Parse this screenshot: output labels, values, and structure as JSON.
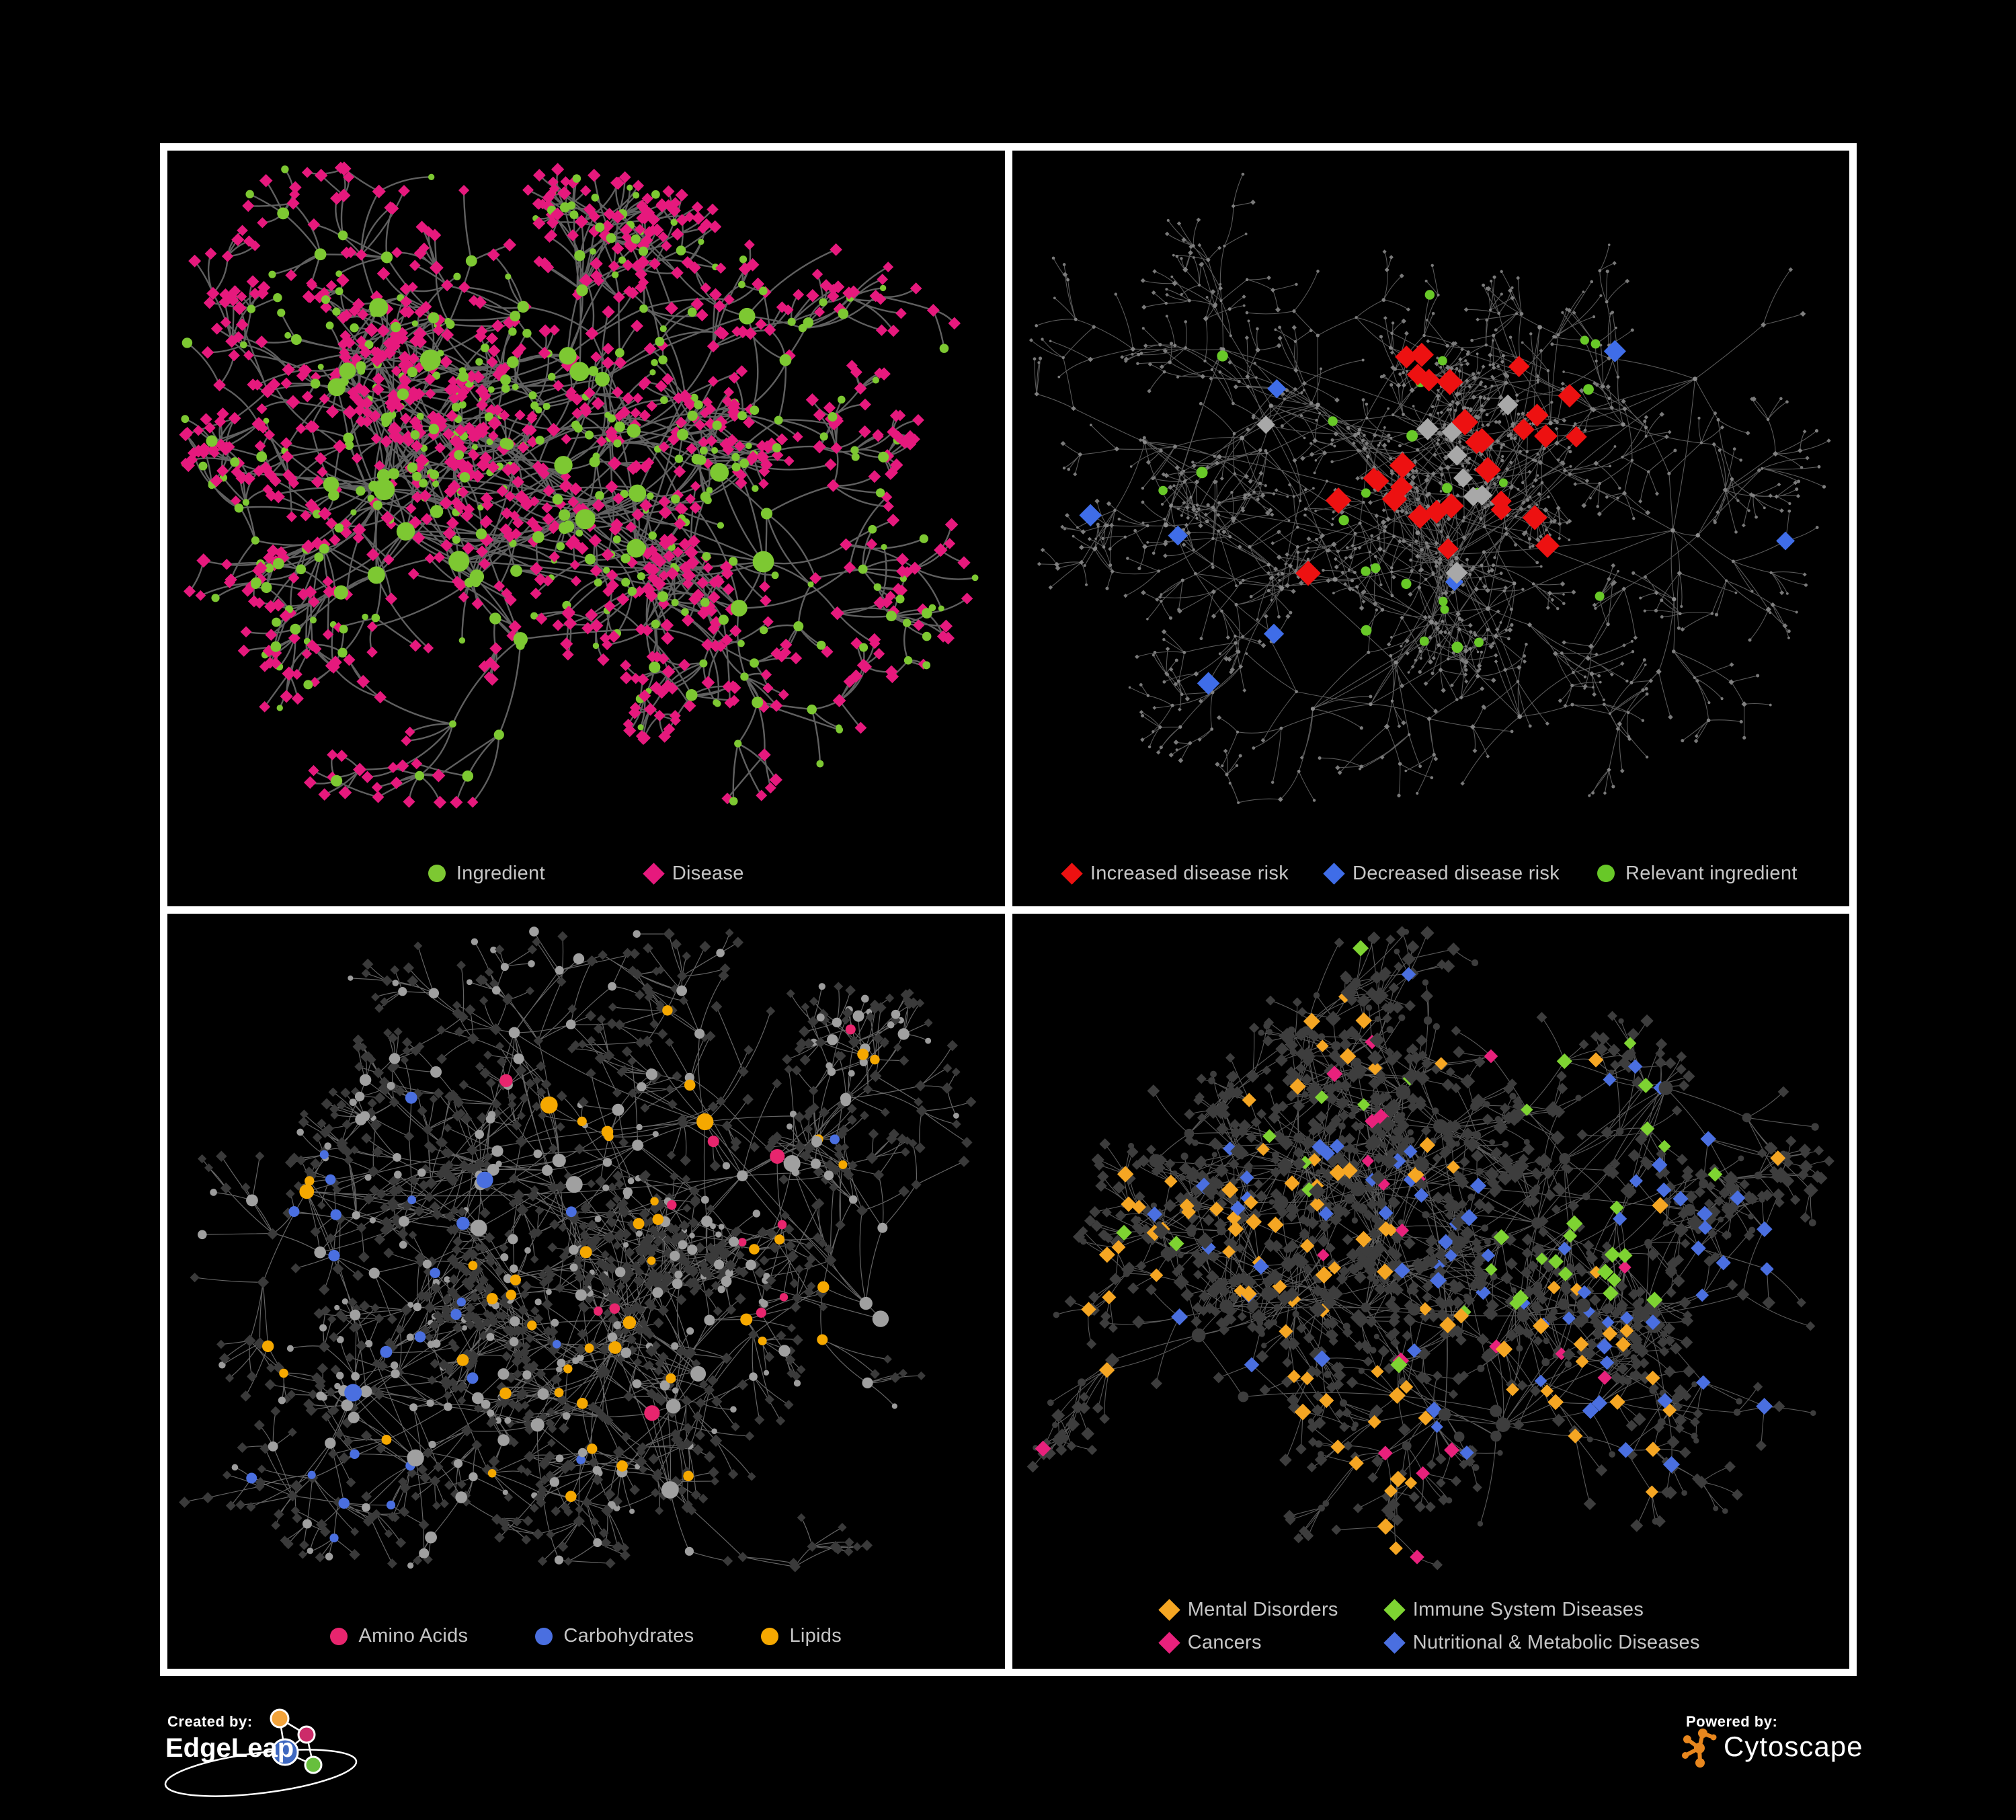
{
  "page": {
    "background": "#000000",
    "border_color": "#ffffff"
  },
  "panels": [
    {
      "id": "ingredient-disease",
      "legend": [
        {
          "label": "Ingredient",
          "shape": "circle",
          "color": "#7dc832"
        },
        {
          "label": "Disease",
          "shape": "diamond",
          "color": "#e6197d"
        }
      ],
      "net": {
        "seed": 11,
        "hubs": 26,
        "rx": 470,
        "ry": 360,
        "dist1": 150,
        "branch": [
          3,
          8
        ],
        "fan": 4,
        "maxDepth": 4,
        "branchProb": 0.72,
        "curvature": 0.2,
        "edge": {
          "color": "#6a6a6a",
          "width": 2.4,
          "opacity": 0.9
        },
        "clusterColors": [
          "#7dc832"
        ],
        "clusterWeights": [
          1
        ],
        "clusterBias": 1,
        "roles": {
          "hub": [
            {
              "shape": "circle",
              "color": "#7dc832",
              "rMin": 9,
              "rMax": 16,
              "w": 1
            }
          ],
          "mid": [
            {
              "shape": "circle",
              "color": "#7dc832",
              "rMin": 5,
              "rMax": 9,
              "w": 0.45
            },
            {
              "shape": "diamond",
              "color": "#e6197d",
              "rMin": 6,
              "rMax": 7.5,
              "w": 0.55
            }
          ],
          "leaf": [
            {
              "shape": "diamond",
              "color": "#e6197d",
              "rMin": 5.5,
              "rMax": 7,
              "w": 0.8
            },
            {
              "shape": "circle",
              "color": "#7dc832",
              "rMin": 4.5,
              "rMax": 7,
              "w": 0.2
            }
          ]
        }
      }
    },
    {
      "id": "disease-risk",
      "legend": [
        {
          "label": "Increased disease risk",
          "shape": "diamond",
          "color": "#ed1111"
        },
        {
          "label": "Decreased disease risk",
          "shape": "diamond",
          "color": "#3f6de8"
        },
        {
          "label": "Relevant ingredient",
          "shape": "circle",
          "color": "#68c828"
        }
      ],
      "net": {
        "seed": 29,
        "hubs": 34,
        "rx": 500,
        "ry": 390,
        "dist1": 118,
        "branch": [
          2,
          6
        ],
        "fan": 3,
        "maxDepth": 4,
        "branchProb": 0.8,
        "curvature": 0.12,
        "edge": {
          "color": "#5e5e5e",
          "width": 1.1,
          "opacity": 0.95
        },
        "clusterColors": [
          "#8a8a8a"
        ],
        "clusterWeights": [
          1
        ],
        "clusterBias": 1,
        "roles": {
          "hub": [
            {
              "shape": "circle",
              "color": "#8a8a8a",
              "rMin": 2.6,
              "rMax": 3.6,
              "w": 1
            }
          ],
          "mid": [
            {
              "shape": "circle",
              "color": "#808080",
              "rMin": 2,
              "rMax": 2.8,
              "w": 0.6
            },
            {
              "shape": "diamond",
              "color": "#808080",
              "rMin": 2.2,
              "rMax": 3,
              "w": 0.4
            }
          ],
          "leaf": [
            {
              "shape": "circle",
              "color": "#7a7a7a",
              "rMin": 1.8,
              "rMax": 2.6,
              "w": 0.55
            },
            {
              "shape": "diamond",
              "color": "#7a7a7a",
              "rMin": 2,
              "rMax": 2.8,
              "w": 0.45
            }
          ]
        },
        "overlays": [
          {
            "shape": "diamond",
            "color": "#ed1111",
            "rMin": 11,
            "rMax": 14,
            "count": 30,
            "zone": "center"
          },
          {
            "shape": "diamond",
            "color": "#a8a8a8",
            "rMin": 9,
            "rMax": 12,
            "count": 9,
            "zone": "center"
          },
          {
            "shape": "diamond",
            "color": "#3f6de8",
            "rMin": 9,
            "rMax": 12,
            "count": 8,
            "zone": "any"
          },
          {
            "shape": "circle",
            "color": "#68c828",
            "rMin": 6.5,
            "rMax": 8.5,
            "count": 28,
            "zone": "center-wide"
          }
        ]
      }
    },
    {
      "id": "ingredient-classes",
      "legend": [
        {
          "label": "Amino Acids",
          "shape": "circle",
          "color": "#e8256e"
        },
        {
          "label": "Carbohydrates",
          "shape": "circle",
          "color": "#4a6fe0"
        },
        {
          "label": "Lipids",
          "shape": "circle",
          "color": "#f5a800"
        }
      ],
      "net": {
        "seed": 41,
        "hubs": 30,
        "rx": 480,
        "ry": 380,
        "dist1": 135,
        "branch": [
          3,
          8
        ],
        "fan": 4,
        "maxDepth": 3,
        "branchProb": 0.78,
        "curvature": 0.1,
        "edge": {
          "color": "#909090",
          "width": 1.2,
          "opacity": 0.7
        },
        "clusterColors": [
          "#a0a0a0",
          "#f5a800",
          "#4a6fe0",
          "#e8256e"
        ],
        "clusterWeights": [
          0.45,
          0.32,
          0.11,
          0.12
        ],
        "clusterBias": 0.62,
        "roles": {
          "hub": [
            {
              "shape": "circle",
              "color": "cluster",
              "rMin": 8,
              "rMax": 13,
              "w": 1
            }
          ],
          "mid": [
            {
              "shape": "circle",
              "color": "cluster",
              "rMin": 6,
              "rMax": 9,
              "w": 0.5
            },
            {
              "shape": "diamond",
              "color": "#3a3a3a",
              "rMin": 5,
              "rMax": 6.5,
              "w": 0.5
            }
          ],
          "leaf": [
            {
              "shape": "diamond",
              "color": "#3a3a3a",
              "rMin": 4.5,
              "rMax": 6,
              "w": 0.85
            },
            {
              "shape": "circle",
              "color": "#9c9c9c",
              "rMin": 4,
              "rMax": 6,
              "w": 0.15
            }
          ]
        }
      }
    },
    {
      "id": "disease-classes",
      "legend": [
        {
          "label": "Mental Disorders",
          "shape": "diamond",
          "color": "#f5a623"
        },
        {
          "label": "Immune System Diseases",
          "shape": "diamond",
          "color": "#7ed332"
        },
        {
          "label": "Cancers",
          "shape": "diamond",
          "color": "#e8217c"
        },
        {
          "label": "Nutritional & Metabolic Diseases",
          "shape": "diamond",
          "color": "#4a6fe0"
        }
      ],
      "net": {
        "seed": 57,
        "hubs": 34,
        "rx": 490,
        "ry": 390,
        "dist1": 130,
        "branch": [
          3,
          9
        ],
        "fan": 4,
        "maxDepth": 3,
        "branchProb": 0.8,
        "curvature": 0.1,
        "edge": {
          "color": "#8a8a8a",
          "width": 1.1,
          "opacity": 0.65
        },
        "clusterColors": [
          "#3d3d3d",
          "#f5a623",
          "#e8217c",
          "#4a6fe0",
          "#7ed332"
        ],
        "clusterWeights": [
          0.4,
          0.2,
          0.15,
          0.21,
          0.04
        ],
        "clusterBias": 0.68,
        "regions": [
          {
            "xMax": 0.4,
            "boost": {
              "1": 3.2
            }
          },
          {
            "xMin": 0.6,
            "boost": {
              "3": 3
            }
          },
          {
            "xMin": 0.38,
            "xMax": 0.62,
            "boost": {
              "2": 2.2
            }
          }
        ],
        "roles": {
          "hub": [
            {
              "shape": "circle",
              "color": "#3d3d3d",
              "rMin": 7,
              "rMax": 11,
              "w": 1
            }
          ],
          "mid": [
            {
              "shape": "diamond",
              "color": "cluster",
              "rMin": 6.5,
              "rMax": 9,
              "w": 0.85
            },
            {
              "shape": "circle",
              "color": "#3d3d3d",
              "rMin": 5,
              "rMax": 7,
              "w": 0.15
            }
          ],
          "leaf": [
            {
              "shape": "diamond",
              "color": "#3d3d3d",
              "rMin": 5,
              "rMax": 7,
              "w": 0.8
            },
            {
              "shape": "circle",
              "color": "#3d3d3d",
              "rMin": 4,
              "rMax": 5.5,
              "w": 0.2
            }
          ]
        }
      }
    }
  ],
  "footer": {
    "created_by_label": "Created by:",
    "edgeleap_name": "EdgeLeap",
    "powered_by_label": "Powered by:",
    "cytoscape_name": "Cytoscape",
    "edgeleap_logo_colors": [
      "#f2a33b",
      "#cc2b69",
      "#3e68c0",
      "#67bf3d"
    ],
    "cytoscape_color": "#e8871e"
  }
}
